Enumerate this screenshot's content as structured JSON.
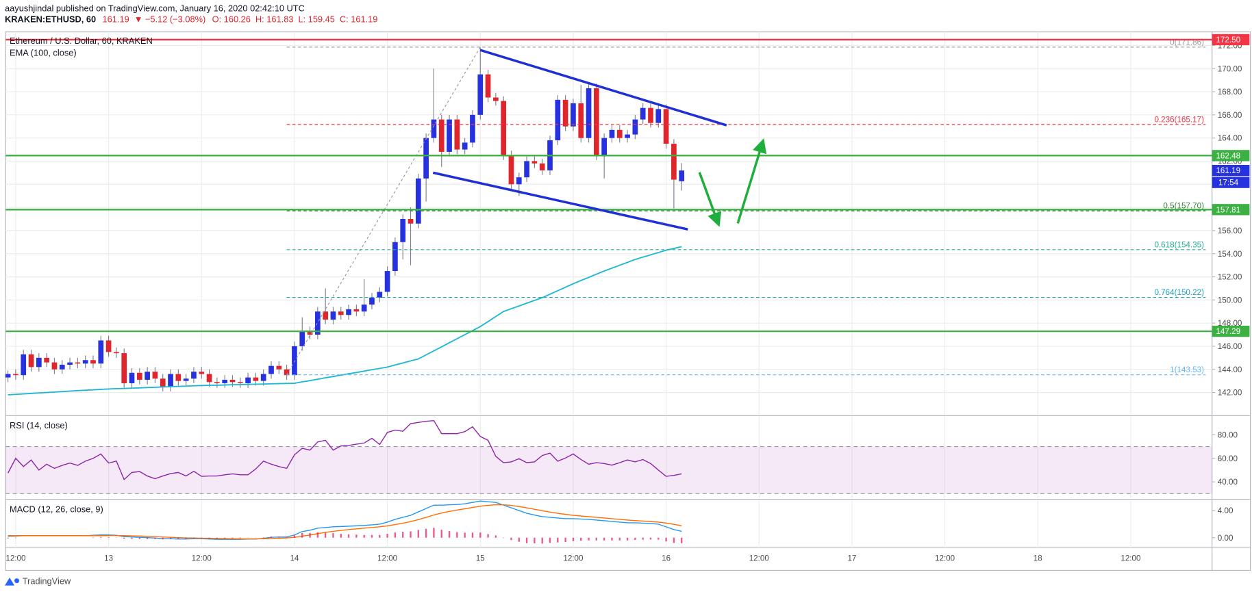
{
  "header": {
    "author": "aayushjindal",
    "published": " published on TradingView.com, January 16, 2020 02:42:10 UTC",
    "symbol": "KRAKEN:ETHUSD, 60",
    "price": "161.19",
    "change": "▼ −5.12 (−3.08%)",
    "ohlc": [
      "O: 160.26",
      "H: 161.83",
      "L: 159.45",
      "C: 161.19"
    ]
  },
  "footer": {
    "brand": "TradingView"
  },
  "chart_data": [
    {
      "type": "candlestick",
      "title": "Ethereum / U.S. Dollar, 60, KRAKEN",
      "open": [
        143.3,
        143.6,
        143.5,
        145.3,
        144.2,
        145.0,
        144.6,
        144.0,
        144.4,
        144.6,
        144.5,
        144.8,
        144.5,
        146.5,
        145.5,
        145.4,
        142.8,
        143.7,
        143.1,
        143.8,
        143.2,
        142.5,
        143.6,
        143.0,
        143.2,
        143.8,
        143.6,
        142.9,
        142.8,
        143.1,
        142.9,
        142.8,
        143.3,
        143.0,
        143.6,
        144.3,
        144.0,
        143.5,
        146.0,
        147.3,
        147.0,
        149.0,
        148.3,
        149.0,
        148.7,
        149.2,
        149.0,
        149.6,
        150.2,
        150.7,
        152.5,
        155.0,
        157.0,
        156.6,
        160.5,
        164.0,
        165.6,
        162.8,
        165.6,
        163.0,
        163.6,
        166.0,
        169.5,
        167.5,
        167.2,
        162.5,
        160.0,
        160.6,
        162.0,
        161.8,
        161.2,
        163.8,
        167.3,
        165.0,
        167.0,
        164.0,
        168.3,
        162.5,
        164.0,
        164.7,
        164.0,
        164.3,
        165.6,
        166.6,
        165.3,
        166.5,
        163.5,
        160.26
      ],
      "high": [
        143.9,
        144.0,
        145.7,
        145.7,
        145.4,
        145.4,
        145.0,
        144.8,
        145.0,
        145.0,
        145.2,
        145.2,
        146.9,
        146.9,
        145.9,
        145.8,
        144.1,
        144.1,
        144.2,
        144.2,
        143.6,
        144.0,
        144.0,
        143.6,
        144.2,
        144.2,
        144.0,
        143.3,
        143.5,
        143.5,
        143.3,
        143.7,
        143.7,
        144.0,
        144.7,
        144.7,
        144.4,
        146.4,
        148.5,
        147.7,
        149.4,
        151.0,
        149.4,
        149.4,
        149.6,
        149.6,
        151.8,
        150.6,
        151.1,
        152.9,
        155.4,
        157.4,
        158.0,
        160.9,
        164.4,
        170.0,
        166.0,
        166.0,
        166.0,
        164.0,
        166.4,
        171.8,
        169.9,
        167.9,
        167.6,
        162.9,
        161.0,
        162.4,
        162.4,
        162.2,
        164.2,
        167.7,
        167.7,
        167.4,
        168.6,
        168.7,
        168.7,
        164.4,
        165.1,
        165.1,
        164.7,
        166.0,
        167.0,
        167.0,
        166.9,
        166.9,
        163.9,
        161.83
      ],
      "low": [
        142.9,
        143.1,
        143.1,
        143.8,
        143.8,
        144.2,
        143.6,
        143.6,
        144.0,
        144.1,
        144.1,
        144.1,
        144.1,
        145.1,
        145.0,
        142.4,
        142.4,
        142.7,
        142.7,
        142.8,
        142.1,
        142.1,
        142.6,
        142.6,
        142.8,
        143.2,
        142.5,
        142.4,
        142.4,
        142.5,
        142.4,
        142.4,
        142.6,
        142.6,
        143.2,
        143.6,
        143.1,
        143.1,
        145.6,
        146.6,
        146.6,
        147.9,
        147.9,
        148.3,
        148.3,
        148.6,
        148.6,
        149.2,
        149.8,
        150.3,
        152.1,
        153.5,
        153.0,
        156.2,
        158.5,
        163.6,
        161.5,
        162.4,
        162.6,
        162.6,
        163.2,
        165.6,
        167.1,
        166.8,
        162.1,
        159.6,
        159.0,
        160.2,
        161.4,
        160.8,
        160.8,
        163.4,
        164.6,
        164.6,
        163.6,
        163.6,
        162.1,
        160.5,
        163.6,
        163.6,
        163.6,
        163.9,
        165.2,
        164.9,
        164.9,
        163.1,
        157.9,
        159.45
      ],
      "close": [
        143.6,
        143.5,
        145.3,
        144.2,
        145.0,
        144.6,
        144.0,
        144.4,
        144.6,
        144.5,
        144.8,
        144.5,
        146.5,
        145.5,
        145.4,
        142.8,
        143.7,
        143.1,
        143.8,
        143.2,
        142.5,
        143.6,
        143.0,
        143.2,
        143.8,
        143.6,
        142.9,
        142.8,
        143.1,
        142.9,
        142.8,
        143.3,
        143.0,
        143.6,
        144.3,
        144.0,
        143.5,
        146.0,
        147.3,
        147.0,
        149.0,
        148.3,
        149.0,
        148.7,
        149.2,
        149.0,
        149.6,
        150.2,
        150.7,
        152.5,
        155.0,
        157.0,
        156.6,
        160.5,
        164.0,
        165.6,
        162.8,
        165.6,
        163.0,
        163.6,
        166.0,
        169.5,
        167.5,
        167.2,
        162.5,
        160.0,
        160.6,
        162.0,
        161.8,
        161.2,
        163.8,
        167.3,
        165.0,
        167.0,
        164.0,
        168.3,
        162.5,
        164.0,
        164.7,
        164.0,
        164.3,
        165.6,
        166.6,
        165.3,
        166.5,
        163.5,
        160.4,
        161.19
      ],
      "up_color": "#2632e0",
      "down_color": "#e0262d",
      "wick_color": "#7d8290",
      "overlays": [
        {
          "name": "EMA (100, close)",
          "color": "#1fb8d4",
          "values": [
            141.8,
            141.84,
            141.88,
            141.92,
            141.96,
            142.0,
            142.04,
            142.08,
            142.12,
            142.16,
            142.2,
            142.23,
            142.27,
            142.3,
            142.33,
            142.35,
            142.38,
            142.4,
            142.43,
            142.45,
            142.48,
            142.5,
            142.53,
            142.55,
            142.58,
            142.6,
            142.62,
            142.63,
            142.65,
            142.67,
            142.68,
            142.7,
            142.72,
            142.73,
            142.75,
            142.77,
            142.78,
            142.8,
            142.92,
            143.03,
            143.15,
            143.27,
            143.38,
            143.5,
            143.62,
            143.73,
            143.85,
            143.97,
            144.08,
            144.2,
            144.38,
            144.55,
            144.73,
            144.9,
            145.25,
            145.6,
            145.95,
            146.3,
            146.65,
            147.0,
            147.35,
            147.7,
            148.13,
            148.57,
            149.0,
            149.24,
            149.48,
            149.72,
            149.96,
            150.2,
            150.5,
            150.8,
            151.1,
            151.4,
            151.68,
            151.95,
            152.23,
            152.5,
            152.75,
            153.0,
            153.25,
            153.5,
            153.7,
            153.9,
            154.1,
            154.3,
            154.45,
            154.6
          ]
        }
      ],
      "ylim": [
        140.07,
        173.17
      ],
      "yticks": [
        {
          "value": 142,
          "label": "142.00"
        },
        {
          "value": 144,
          "label": "144.00"
        },
        {
          "value": 146,
          "label": "146.00"
        },
        {
          "value": 148,
          "label": "148.00"
        },
        {
          "value": 150,
          "label": "150.00"
        },
        {
          "value": 152,
          "label": "152.00"
        },
        {
          "value": 154,
          "label": "154.00"
        },
        {
          "value": 156,
          "label": "156.00"
        },
        {
          "value": 158,
          "label": "158.00"
        },
        {
          "value": 160,
          "label": "160.00"
        },
        {
          "value": 162,
          "label": "162.00"
        },
        {
          "value": 164,
          "label": "164.00"
        },
        {
          "value": 166,
          "label": "166.00"
        },
        {
          "value": 168,
          "label": "168.00"
        },
        {
          "value": 170,
          "label": "170.00"
        },
        {
          "value": 172,
          "label": "172.00"
        }
      ],
      "xlim": [
        -0.3,
        155.5
      ],
      "xticks": [
        {
          "value": 1,
          "label": "12:00"
        },
        {
          "value": 13,
          "label": "13"
        },
        {
          "value": 25,
          "label": "12:00"
        },
        {
          "value": 37,
          "label": "14"
        },
        {
          "value": 49,
          "label": "12:00"
        },
        {
          "value": 61,
          "label": "15"
        },
        {
          "value": 73,
          "label": "12:00"
        },
        {
          "value": 85,
          "label": "16"
        },
        {
          "value": 97,
          "label": "12:00"
        },
        {
          "value": 109,
          "label": "17"
        },
        {
          "value": 121,
          "label": "12:00"
        },
        {
          "value": 133,
          "label": "18"
        },
        {
          "value": 145,
          "label": "12:00"
        }
      ],
      "grid": true,
      "levels": [
        {
          "value": 172.5,
          "label": "172.50",
          "color": "#f23645"
        },
        {
          "value": 162.48,
          "label": "162.48",
          "color": "#3cb043"
        },
        {
          "value": 157.81,
          "label": "157.81",
          "color": "#3cb043"
        },
        {
          "value": 147.29,
          "label": "147.29",
          "color": "#3cb043"
        }
      ],
      "last_price": {
        "value": 161.19,
        "label": "161.19",
        "color": "#2632e0"
      },
      "countdown": "17:54",
      "fib": {
        "from": 36,
        "to": 61,
        "levels": [
          {
            "value": 171.86,
            "label": "0(171.86)",
            "color": "#9598a1"
          },
          {
            "value": 165.17,
            "label": "0.236(165.17)",
            "color": "#f23645"
          },
          {
            "value": 157.7,
            "label": "0.5(157.70)",
            "color": "#2e7d32"
          },
          {
            "value": 154.35,
            "label": "0.618(154.35)",
            "color": "#22ab94"
          },
          {
            "value": 150.22,
            "label": "0.764(150.22)",
            "color": "#1e9fc0"
          },
          {
            "value": 143.53,
            "label": "1(143.53)",
            "color": "#64b5f6"
          }
        ]
      },
      "trendlines": [
        {
          "color": "#1f2fd6",
          "x": [
            61,
            92.8
          ],
          "y": [
            171.6,
            165.1
          ]
        },
        {
          "color": "#1f2fd6",
          "x": [
            54.9,
            87.8
          ],
          "y": [
            161.0,
            156.1
          ]
        }
      ]
    },
    {
      "type": "line",
      "title": "RSI (14, close)",
      "series": [
        {
          "color": "#8e24aa",
          "values": [
            47.5,
            60,
            53,
            58.6,
            50,
            55,
            51.5,
            54,
            56,
            54,
            57.6,
            60,
            63.7,
            56,
            57.6,
            42,
            48,
            48.8,
            45,
            42.7,
            45,
            47,
            48,
            45,
            49,
            44.7,
            45,
            45,
            46,
            46.8,
            46,
            46,
            51,
            57.6,
            55,
            53,
            51.5,
            63,
            68.5,
            67,
            73.9,
            75.3,
            67,
            70.5,
            71,
            72,
            73,
            77,
            71.8,
            82,
            84,
            83,
            89.5,
            90.5,
            91.5,
            92,
            81,
            81,
            81,
            82.7,
            86.8,
            78.6,
            75.3,
            61.7,
            56.3,
            57,
            59.7,
            56.3,
            57,
            62.4,
            64.4,
            57.6,
            60.3,
            63.7,
            59,
            55,
            56.3,
            55.6,
            54.2,
            56.3,
            58.6,
            57,
            59,
            55.6,
            50,
            44.7,
            45.5,
            46.8
          ]
        }
      ],
      "ylim": [
        25.8,
        95.6
      ],
      "yticks": [
        {
          "value": 40,
          "label": "40.00"
        },
        {
          "value": 60,
          "label": "60.00"
        },
        {
          "value": 80,
          "label": "80.00"
        }
      ],
      "band": [
        30,
        70
      ],
      "band_color": "#9c27b0",
      "grid": false
    },
    {
      "type": "macd",
      "title": "MACD (12, 26, close, 9)",
      "series": [
        {
          "color": "#2196f3",
          "values": [
            0.2,
            0.25,
            0.3,
            0.3,
            0.3,
            0.3,
            0.3,
            0.3,
            0.3,
            0.3,
            0.3,
            0.35,
            0.4,
            0.4,
            0.35,
            0.15,
            0.1,
            0.05,
            0,
            -0.05,
            -0.15,
            -0.15,
            -0.2,
            -0.2,
            -0.15,
            -0.15,
            -0.2,
            -0.25,
            -0.25,
            -0.25,
            -0.25,
            -0.2,
            -0.2,
            -0.1,
            0.05,
            0.1,
            0.1,
            0.4,
            0.9,
            1.1,
            1.4,
            1.5,
            1.6,
            1.65,
            1.7,
            1.75,
            1.8,
            1.9,
            2.0,
            2.3,
            2.7,
            3.0,
            3.3,
            3.8,
            4.3,
            4.8,
            4.8,
            4.85,
            4.9,
            5.0,
            5.2,
            5.4,
            5.3,
            5.2,
            4.8,
            4.4,
            4.0,
            3.6,
            3.35,
            3.1,
            3.0,
            2.9,
            2.8,
            2.8,
            2.75,
            2.7,
            2.6,
            2.5,
            2.4,
            2.3,
            2.2,
            2.2,
            2.15,
            2.1,
            2.0,
            1.6,
            1.2,
            0.94
          ]
        },
        {
          "color": "#ff6d00",
          "values": [
            0.3,
            0.3,
            0.3,
            0.3,
            0.3,
            0.3,
            0.3,
            0.3,
            0.3,
            0.3,
            0.3,
            0.3,
            0.3,
            0.32,
            0.32,
            0.3,
            0.27,
            0.24,
            0.2,
            0.15,
            0.1,
            0.05,
            0,
            -0.03,
            -0.05,
            -0.07,
            -0.09,
            -0.12,
            -0.14,
            -0.16,
            -0.18,
            -0.18,
            -0.18,
            -0.16,
            -0.12,
            -0.08,
            -0.04,
            0.05,
            0.22,
            0.4,
            0.6,
            0.78,
            0.94,
            1.08,
            1.2,
            1.3,
            1.4,
            1.5,
            1.6,
            1.74,
            1.93,
            2.14,
            2.37,
            2.66,
            2.99,
            3.35,
            3.64,
            3.88,
            4.08,
            4.26,
            4.45,
            4.64,
            4.77,
            4.86,
            4.85,
            4.76,
            4.6,
            4.4,
            4.19,
            3.97,
            3.77,
            3.6,
            3.44,
            3.31,
            3.2,
            3.1,
            3.0,
            2.9,
            2.8,
            2.7,
            2.6,
            2.52,
            2.45,
            2.38,
            2.3,
            2.16,
            1.97,
            1.76
          ]
        },
        {
          "color": "#e91e63",
          "style": "histogram",
          "values": [
            -0.1,
            -0.05,
            0,
            0,
            0,
            0,
            0,
            0,
            0,
            0,
            0,
            0.05,
            0.1,
            0.08,
            0.03,
            -0.15,
            -0.17,
            -0.19,
            -0.2,
            -0.2,
            -0.25,
            -0.2,
            -0.2,
            -0.17,
            -0.1,
            -0.08,
            -0.11,
            -0.13,
            -0.11,
            -0.09,
            -0.07,
            -0.02,
            -0.02,
            0.06,
            0.17,
            0.18,
            0.14,
            0.35,
            0.68,
            0.7,
            0.8,
            0.72,
            0.66,
            0.57,
            0.5,
            0.45,
            0.4,
            0.4,
            0.4,
            0.56,
            0.77,
            0.86,
            0.93,
            1.14,
            1.31,
            1.45,
            1.16,
            0.97,
            0.82,
            0.74,
            0.75,
            0.76,
            0.53,
            0.34,
            -0.05,
            -0.36,
            -0.6,
            -0.8,
            -0.84,
            -0.87,
            -0.77,
            -0.7,
            -0.64,
            -0.51,
            -0.45,
            -0.4,
            -0.4,
            -0.4,
            -0.4,
            -0.4,
            -0.4,
            -0.32,
            -0.3,
            -0.28,
            -0.3,
            -0.56,
            -0.77,
            -0.82
          ]
        }
      ],
      "ylim": [
        -1.41,
        5.53
      ],
      "yticks": [
        {
          "value": 0,
          "label": "0.00"
        },
        {
          "value": 4,
          "label": "4.00"
        }
      ],
      "grid": false
    }
  ]
}
